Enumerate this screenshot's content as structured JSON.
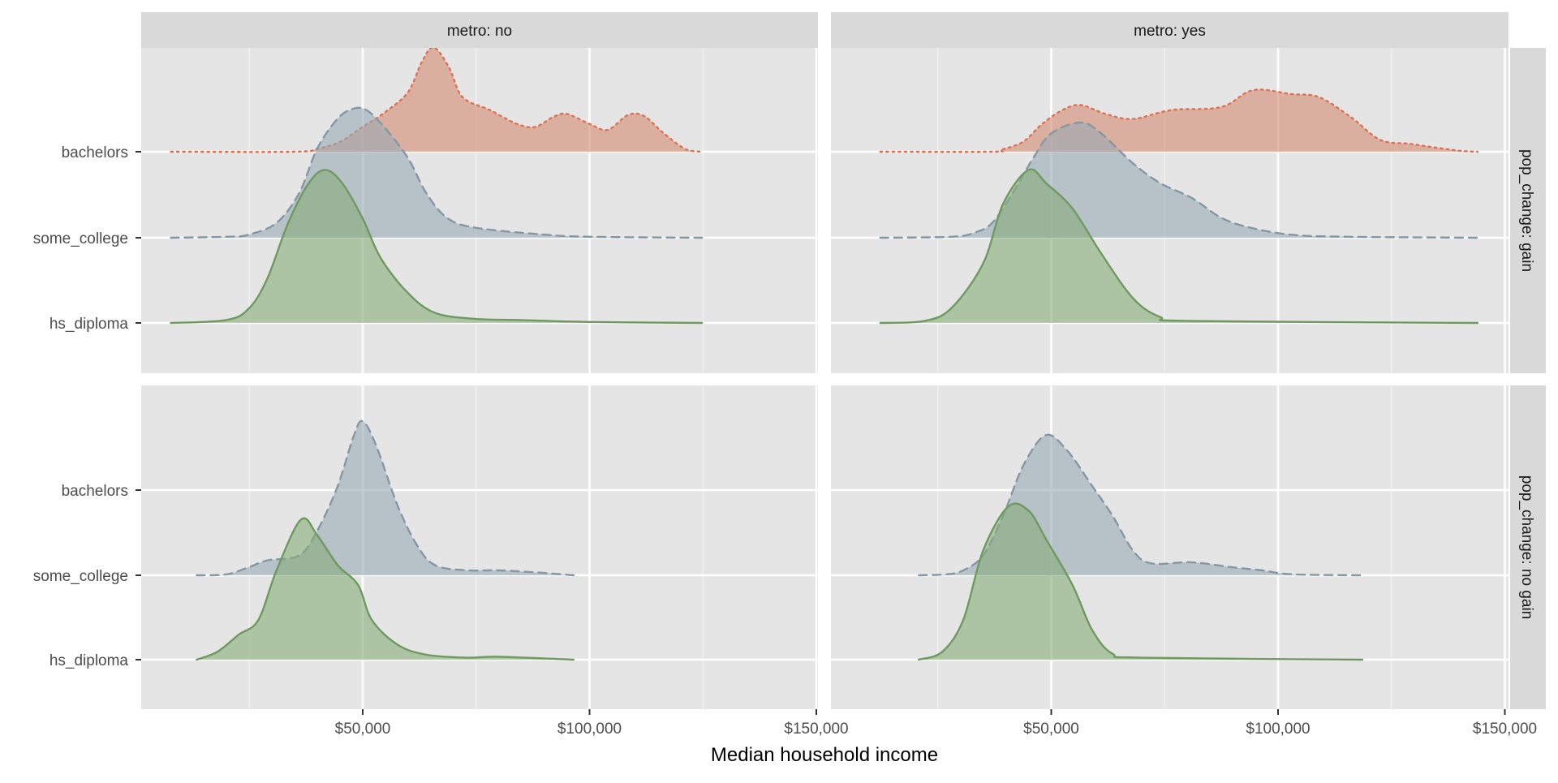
{
  "chart_data": {
    "type": "ridgeline",
    "xlabel": "Median household income",
    "ylabel": "",
    "xlim": [
      0,
      150000
    ],
    "x_ticks": [
      50000,
      100000,
      150000
    ],
    "x_tick_labels": [
      "$50,000",
      "$100,000",
      "$150,000"
    ],
    "x_minor_ticks": [
      25000,
      75000,
      125000
    ],
    "categories": [
      "hs_diploma",
      "some_college",
      "bachelors"
    ],
    "grid": true,
    "facet_cols": [
      "metro: no",
      "metro: yes"
    ],
    "facet_rows": [
      "pop_change: gain",
      "pop_change: no gain"
    ],
    "styles": {
      "bachelors": {
        "fill": "#d38a72",
        "line": "#e0704f",
        "dash": "dotted"
      },
      "some_college": {
        "fill": "#97a8b4",
        "line": "#8497a5",
        "dash": "dashed"
      },
      "hs_diploma": {
        "fill": "#86ab78",
        "line": "#6e9a60",
        "dash": "solid"
      }
    },
    "panels": [
      {
        "col": 0,
        "row": 0,
        "series": [
          {
            "name": "bachelors",
            "points": [
              [
                7.7,
                0
              ],
              [
                35,
                0
              ],
              [
                40,
                0.03
              ],
              [
                45,
                0.1
              ],
              [
                50,
                0.25
              ],
              [
                55,
                0.4
              ],
              [
                60,
                0.6
              ],
              [
                63,
                0.9
              ],
              [
                65.6,
                1.05
              ],
              [
                69,
                0.85
              ],
              [
                72,
                0.55
              ],
              [
                78,
                0.42
              ],
              [
                84,
                0.28
              ],
              [
                88,
                0.25
              ],
              [
                92,
                0.35
              ],
              [
                95,
                0.38
              ],
              [
                100,
                0.28
              ],
              [
                104,
                0.22
              ],
              [
                108.5,
                0.37
              ],
              [
                112,
                0.36
              ],
              [
                116,
                0.2
              ],
              [
                121,
                0.03
              ],
              [
                124.8,
                0
              ]
            ]
          },
          {
            "name": "some_college",
            "points": [
              [
                7.7,
                0
              ],
              [
                20,
                0.01
              ],
              [
                24.8,
                0.03
              ],
              [
                31,
                0.15
              ],
              [
                36,
                0.45
              ],
              [
                40,
                0.9
              ],
              [
                44.5,
                1.2
              ],
              [
                48,
                1.3
              ],
              [
                51,
                1.28
              ],
              [
                55,
                1.1
              ],
              [
                60,
                0.8
              ],
              [
                64,
                0.45
              ],
              [
                68.6,
                0.2
              ],
              [
                75,
                0.1
              ],
              [
                90.5,
                0.03
              ],
              [
                100,
                0.01
              ],
              [
                124.8,
                0
              ]
            ]
          },
          {
            "name": "hs_diploma",
            "points": [
              [
                7.7,
                0
              ],
              [
                20,
                0.03
              ],
              [
                25,
                0.15
              ],
              [
                29,
                0.45
              ],
              [
                33.5,
                1.0
              ],
              [
                38,
                1.4
              ],
              [
                41.7,
                1.54
              ],
              [
                45.6,
                1.4
              ],
              [
                50,
                1.05
              ],
              [
                54,
                0.65
              ],
              [
                60,
                0.3
              ],
              [
                66,
                0.1
              ],
              [
                75,
                0.04
              ],
              [
                84,
                0.03
              ],
              [
                100,
                0.01
              ],
              [
                124.8,
                0
              ]
            ]
          }
        ]
      },
      {
        "col": 1,
        "row": 0,
        "series": [
          {
            "name": "bachelors",
            "points": [
              [
                12.3,
                0
              ],
              [
                37,
                0
              ],
              [
                39,
                0.02
              ],
              [
                43.8,
                0.1
              ],
              [
                48,
                0.28
              ],
              [
                52.5,
                0.42
              ],
              [
                56.5,
                0.47
              ],
              [
                62,
                0.38
              ],
              [
                68,
                0.33
              ],
              [
                76.6,
                0.42
              ],
              [
                87.5,
                0.45
              ],
              [
                94.5,
                0.62
              ],
              [
                103,
                0.58
              ],
              [
                109,
                0.55
              ],
              [
                116,
                0.35
              ],
              [
                122.5,
                0.12
              ],
              [
                129,
                0.08
              ],
              [
                133.5,
                0.05
              ],
              [
                140,
                0.01
              ],
              [
                144,
                0
              ]
            ]
          },
          {
            "name": "some_college",
            "points": [
              [
                12.3,
                0
              ],
              [
                28,
                0.01
              ],
              [
                33,
                0.05
              ],
              [
                37,
                0.15
              ],
              [
                41.5,
                0.45
              ],
              [
                46,
                0.8
              ],
              [
                50,
                1.05
              ],
              [
                56.5,
                1.16
              ],
              [
                61,
                1.05
              ],
              [
                68,
                0.75
              ],
              [
                74,
                0.55
              ],
              [
                81,
                0.4
              ],
              [
                87.5,
                0.2
              ],
              [
                94,
                0.1
              ],
              [
                103,
                0.03
              ],
              [
                115,
                0.01
              ],
              [
                144,
                0
              ]
            ]
          },
          {
            "name": "hs_diploma",
            "points": [
              [
                12.3,
                0
              ],
              [
                22,
                0.02
              ],
              [
                28,
                0.15
              ],
              [
                35,
                0.6
              ],
              [
                39.4,
                1.2
              ],
              [
                45,
                1.54
              ],
              [
                49,
                1.4
              ],
              [
                54.7,
                1.15
              ],
              [
                61,
                0.7
              ],
              [
                68,
                0.25
              ],
              [
                74,
                0.06
              ],
              [
                81,
                0.02
              ],
              [
                144,
                0
              ]
            ]
          }
        ]
      },
      {
        "col": 0,
        "row": 1,
        "series": [
          {
            "name": "some_college",
            "points": [
              [
                13.4,
                0
              ],
              [
                20,
                0.01
              ],
              [
                24.8,
                0.08
              ],
              [
                29,
                0.15
              ],
              [
                36,
                0.2
              ],
              [
                40,
                0.45
              ],
              [
                44.5,
                0.9
              ],
              [
                48,
                1.4
              ],
              [
                50,
                1.55
              ],
              [
                53,
                1.3
              ],
              [
                57.7,
                0.7
              ],
              [
                62,
                0.3
              ],
              [
                66,
                0.1
              ],
              [
                73,
                0.05
              ],
              [
                79.6,
                0.05
              ],
              [
                88,
                0.03
              ],
              [
                96.5,
                0
              ]
            ]
          },
          {
            "name": "hs_diploma",
            "points": [
              [
                13.4,
                0
              ],
              [
                18,
                0.08
              ],
              [
                22.6,
                0.25
              ],
              [
                27,
                0.4
              ],
              [
                31,
                0.9
              ],
              [
                36.4,
                1.41
              ],
              [
                40,
                1.25
              ],
              [
                44.5,
                0.95
              ],
              [
                49,
                0.75
              ],
              [
                52,
                0.4
              ],
              [
                57.7,
                0.15
              ],
              [
                64,
                0.05
              ],
              [
                73,
                0.02
              ],
              [
                79.6,
                0.03
              ],
              [
                96.5,
                0
              ]
            ]
          }
        ]
      },
      {
        "col": 1,
        "row": 1,
        "series": [
          {
            "name": "some_college",
            "points": [
              [
                20.8,
                0
              ],
              [
                27,
                0.01
              ],
              [
                30.6,
                0.05
              ],
              [
                35,
                0.2
              ],
              [
                39.4,
                0.6
              ],
              [
                43.8,
                1.1
              ],
              [
                48.8,
                1.41
              ],
              [
                53.6,
                1.25
              ],
              [
                59,
                0.9
              ],
              [
                63.5,
                0.6
              ],
              [
                68,
                0.25
              ],
              [
                72,
                0.12
              ],
              [
                81,
                0.13
              ],
              [
                90,
                0.08
              ],
              [
                96.5,
                0.05
              ],
              [
                103,
                0.01
              ],
              [
                118.6,
                0
              ]
            ]
          },
          {
            "name": "hs_diploma",
            "points": [
              [
                20.8,
                0
              ],
              [
                26,
                0.08
              ],
              [
                30.6,
                0.4
              ],
              [
                35,
                1.1
              ],
              [
                40.5,
                1.54
              ],
              [
                45,
                1.5
              ],
              [
                49,
                1.2
              ],
              [
                54.7,
                0.75
              ],
              [
                59,
                0.3
              ],
              [
                63.5,
                0.06
              ],
              [
                70,
                0.02
              ],
              [
                118.6,
                0
              ]
            ]
          }
        ]
      }
    ]
  }
}
